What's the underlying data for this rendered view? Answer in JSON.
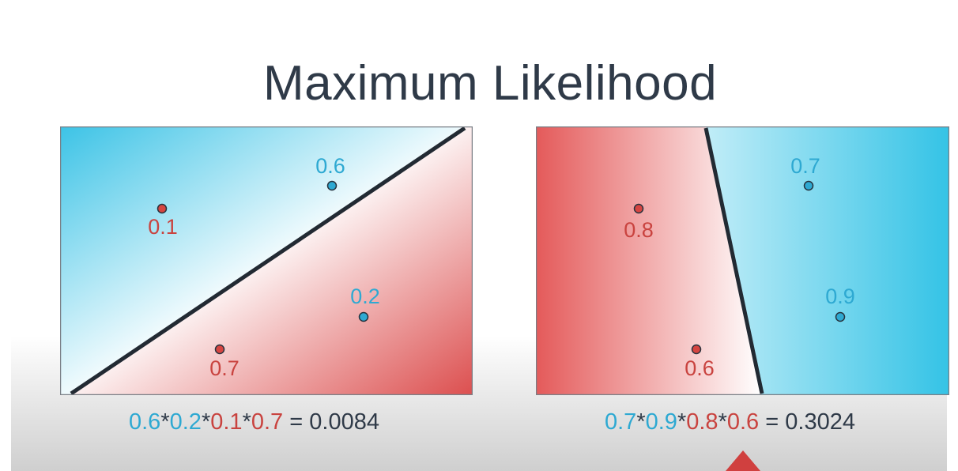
{
  "title": "Maximum Likelihood",
  "colors": {
    "blue": "#2ea9d2",
    "red": "#c9433f",
    "line": "#222a33",
    "text": "#2f3a48"
  },
  "left_panel": {
    "points": [
      {
        "label": "0.6",
        "color": "blue"
      },
      {
        "label": "0.1",
        "color": "red"
      },
      {
        "label": "0.2",
        "color": "blue"
      },
      {
        "label": "0.7",
        "color": "red"
      }
    ],
    "equation": {
      "terms": [
        "0.6",
        "0.2",
        "0.1",
        "0.7"
      ],
      "result": "= 0.0084"
    }
  },
  "right_panel": {
    "points": [
      {
        "label": "0.7",
        "color": "blue"
      },
      {
        "label": "0.8",
        "color": "red"
      },
      {
        "label": "0.9",
        "color": "blue"
      },
      {
        "label": "0.6",
        "color": "red"
      }
    ],
    "equation": {
      "terms": [
        "0.7",
        "0.9",
        "0.8",
        "0.6"
      ],
      "result": "= 0.3024"
    }
  }
}
